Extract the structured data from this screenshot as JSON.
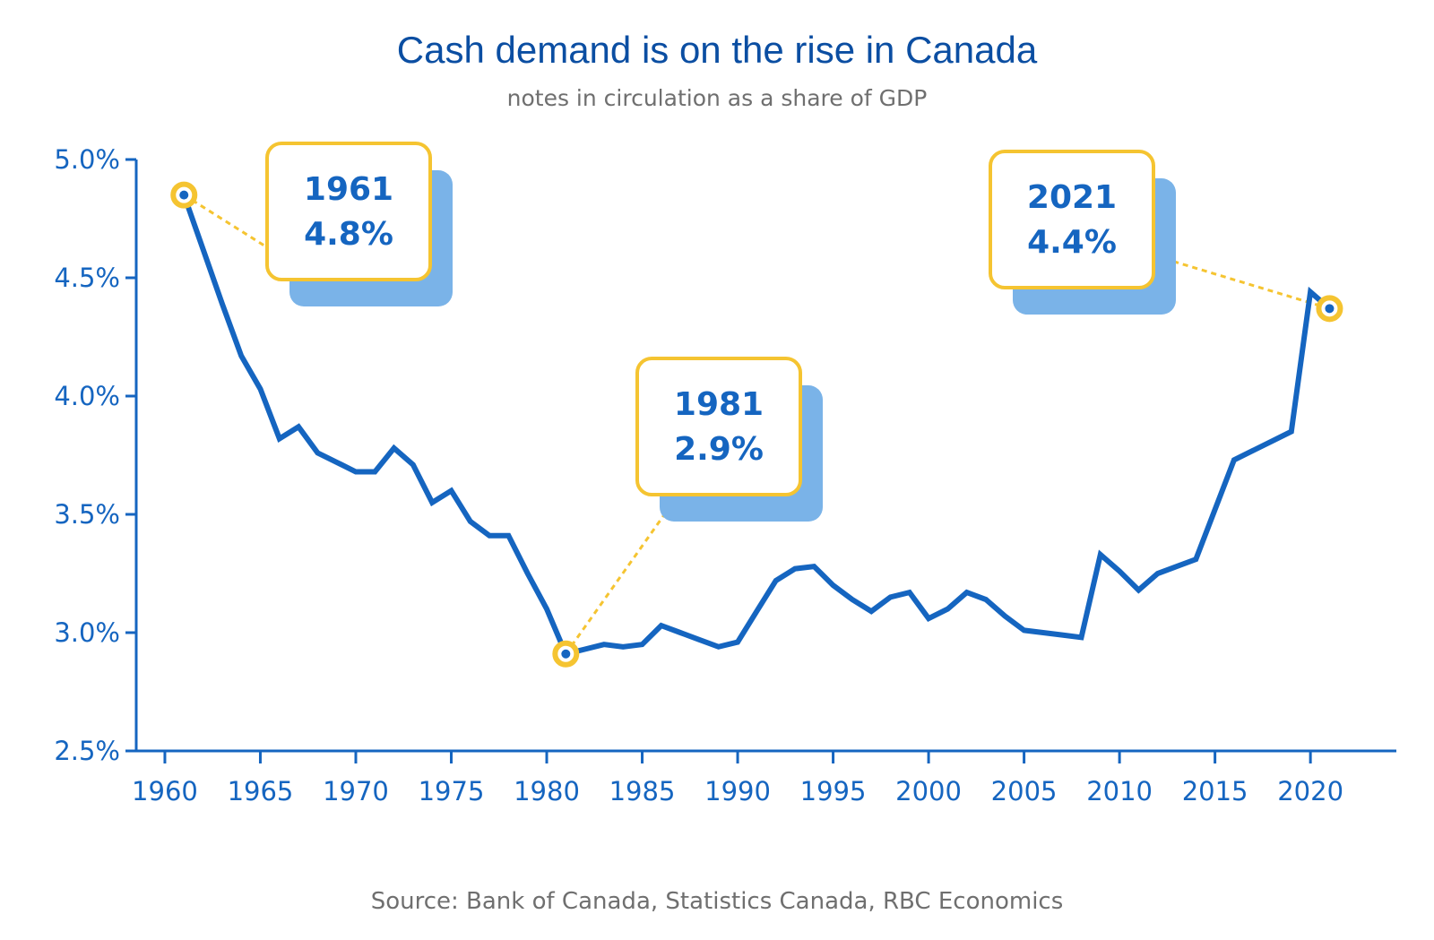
{
  "colors": {
    "line": "#1565c0",
    "axis": "#1565c0",
    "callout_border": "#f5c431",
    "callout_shadow": "#7ab3e8",
    "title": "#0b4ea2",
    "subtitle": "#6f6f6f"
  },
  "source": "Source: Bank of Canada, Statistics Canada, RBC Economics",
  "chart_data": {
    "type": "line",
    "title": "Cash demand is on the rise in Canada",
    "subtitle": "notes in circulation as a share of GDP",
    "xlabel": "",
    "ylabel": "",
    "xlim": [
      1958.5,
      2024.5
    ],
    "ylim": [
      2.5,
      5.0
    ],
    "x_ticks": [
      "1960",
      "1965",
      "1970",
      "1975",
      "1980",
      "1985",
      "1990",
      "1995",
      "2000",
      "2005",
      "2010",
      "2015",
      "2020"
    ],
    "y_ticks": [
      "2.5%",
      "3.0%",
      "3.5%",
      "4.0%",
      "4.5%",
      "5.0%"
    ],
    "grid": false,
    "legend": "none",
    "series": [
      {
        "x": [
          1961,
          1962,
          1963,
          1964,
          1965,
          1966,
          1967,
          1968,
          1969,
          1970,
          1971,
          1972,
          1973,
          1974,
          1975,
          1976,
          1977,
          1978,
          1979,
          1980,
          1981,
          1982,
          1983,
          1984,
          1985,
          1986,
          1987,
          1988,
          1989,
          1990,
          1991,
          1992,
          1993,
          1994,
          1995,
          1996,
          1997,
          1998,
          1999,
          2000,
          2001,
          2002,
          2003,
          2004,
          2005,
          2006,
          2007,
          2008,
          2009,
          2010,
          2011,
          2012,
          2013,
          2014,
          2015,
          2016,
          2017,
          2018,
          2019,
          2020,
          2021
        ],
        "y": [
          4.85,
          4.62,
          4.39,
          4.17,
          4.03,
          3.82,
          3.87,
          3.76,
          3.72,
          3.68,
          3.68,
          3.78,
          3.71,
          3.55,
          3.6,
          3.47,
          3.41,
          3.41,
          3.25,
          3.1,
          2.91,
          2.93,
          2.95,
          2.94,
          2.95,
          3.03,
          3.0,
          2.97,
          2.94,
          2.96,
          3.09,
          3.22,
          3.27,
          3.28,
          3.2,
          3.14,
          3.09,
          3.15,
          3.17,
          3.06,
          3.1,
          3.17,
          3.14,
          3.07,
          3.01,
          3.0,
          2.99,
          2.98,
          3.33,
          3.26,
          3.18,
          3.25,
          3.28,
          3.31,
          3.52,
          3.73,
          3.77,
          3.81,
          3.85,
          4.44,
          4.37
        ]
      }
    ],
    "annotations": [
      {
        "x": 1961,
        "y": 4.85,
        "line1": "1961",
        "line2": "4.8%"
      },
      {
        "x": 1981,
        "y": 2.91,
        "line1": "1981",
        "line2": "2.9%"
      },
      {
        "x": 2021,
        "y": 4.37,
        "line1": "2021",
        "line2": "4.4%"
      }
    ]
  }
}
